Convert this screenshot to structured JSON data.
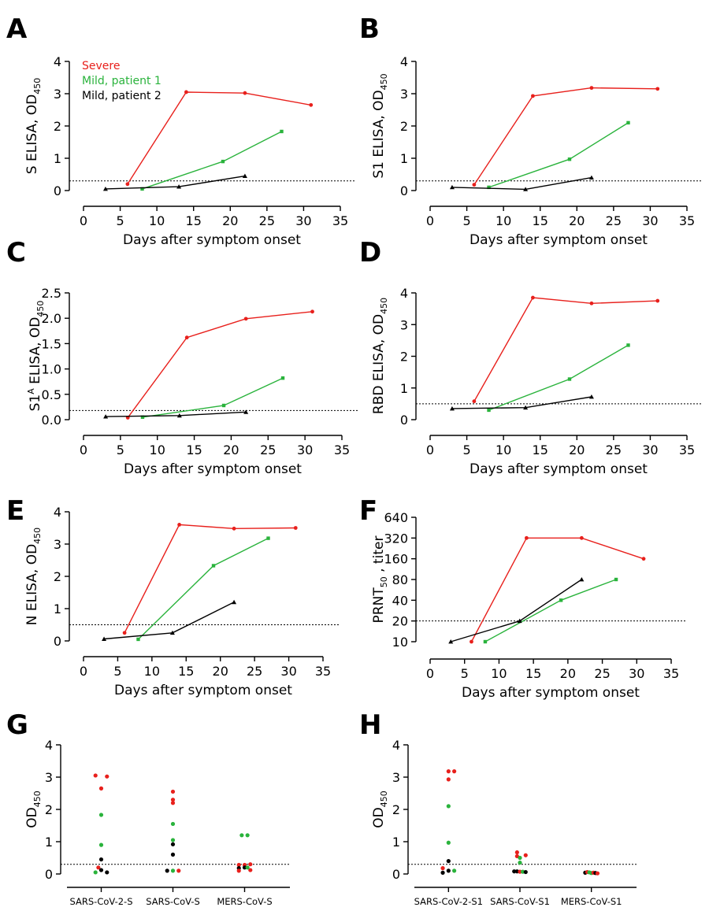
{
  "colors": {
    "severe": "#e8201c",
    "mild1": "#2ab33c",
    "mild2": "#000000",
    "axis": "#000000",
    "cutoff": "#000000"
  },
  "legend": [
    {
      "name": "Severe",
      "color": "#e8201c"
    },
    {
      "name": "Mild, patient 1",
      "color": "#2ab33c"
    },
    {
      "name": "Mild, patient 2",
      "color": "#000000"
    }
  ],
  "chart_data": [
    {
      "panel": "A",
      "type": "line",
      "xlabel": "Days after symptom onset",
      "ylabel": "S ELISA, OD",
      "ylabel_sub": "450",
      "xlim": [
        0,
        35
      ],
      "xticks": [
        "0",
        "5",
        "10",
        "15",
        "20",
        "25",
        "30",
        "35"
      ],
      "ylim": [
        0,
        4
      ],
      "yticks": [
        "0",
        "1",
        "2",
        "3",
        "4"
      ],
      "cutoff": 0.3,
      "series": [
        {
          "name": "Severe",
          "x": [
            6,
            14,
            22,
            31
          ],
          "y": [
            0.2,
            3.05,
            3.02,
            2.65
          ]
        },
        {
          "name": "Mild, patient 1",
          "x": [
            8,
            19,
            27
          ],
          "y": [
            0.05,
            0.9,
            1.83
          ]
        },
        {
          "name": "Mild, patient 2",
          "x": [
            3,
            13,
            22
          ],
          "y": [
            0.05,
            0.12,
            0.45
          ]
        }
      ]
    },
    {
      "panel": "B",
      "type": "line",
      "xlabel": "Days after symptom onset",
      "ylabel": "S1 ELISA, OD",
      "ylabel_sub": "450",
      "xlim": [
        0,
        35
      ],
      "xticks": [
        "0",
        "5",
        "10",
        "15",
        "20",
        "25",
        "30",
        "35"
      ],
      "ylim": [
        0,
        4
      ],
      "yticks": [
        "0",
        "1",
        "2",
        "3",
        "4"
      ],
      "cutoff": 0.3,
      "series": [
        {
          "name": "Severe",
          "x": [
            6,
            14,
            22,
            31
          ],
          "y": [
            0.18,
            2.93,
            3.18,
            3.15
          ]
        },
        {
          "name": "Mild, patient 1",
          "x": [
            8,
            19,
            27
          ],
          "y": [
            0.1,
            0.97,
            2.1
          ]
        },
        {
          "name": "Mild, patient 2",
          "x": [
            3,
            13,
            22
          ],
          "y": [
            0.1,
            0.04,
            0.4
          ]
        }
      ]
    },
    {
      "panel": "C",
      "type": "line",
      "xlabel": "Days after symptom onset",
      "ylabel": "S1",
      "ylabel_sup": "A",
      "ylabel_rest": " ELISA, OD",
      "ylabel_sub": "450",
      "xlim": [
        0,
        35
      ],
      "xticks": [
        "0",
        "5",
        "10",
        "15",
        "20",
        "25",
        "30",
        "35"
      ],
      "ylim": [
        0,
        2.5
      ],
      "yticks": [
        "0.0",
        "0.5",
        "1.0",
        "1.5",
        "2.0",
        "2.5"
      ],
      "cutoff": 0.18,
      "series": [
        {
          "name": "Severe",
          "x": [
            6,
            14,
            22,
            31
          ],
          "y": [
            0.04,
            1.62,
            1.99,
            2.13
          ]
        },
        {
          "name": "Mild, patient 1",
          "x": [
            8,
            19,
            27
          ],
          "y": [
            0.05,
            0.28,
            0.82
          ]
        },
        {
          "name": "Mild, patient 2",
          "x": [
            3,
            13,
            22
          ],
          "y": [
            0.06,
            0.08,
            0.15
          ]
        }
      ]
    },
    {
      "panel": "D",
      "type": "line",
      "xlabel": "Days after symptom onset",
      "ylabel": "RBD ELISA, OD",
      "ylabel_sub": "450",
      "xlim": [
        0,
        35
      ],
      "xticks": [
        "0",
        "5",
        "10",
        "15",
        "20",
        "25",
        "30",
        "35"
      ],
      "ylim": [
        0,
        4
      ],
      "yticks": [
        "0",
        "1",
        "2",
        "3",
        "4"
      ],
      "cutoff": 0.5,
      "series": [
        {
          "name": "Severe",
          "x": [
            6,
            14,
            22,
            31
          ],
          "y": [
            0.58,
            3.85,
            3.67,
            3.75
          ]
        },
        {
          "name": "Mild, patient 1",
          "x": [
            8,
            19,
            27
          ],
          "y": [
            0.3,
            1.28,
            2.35
          ]
        },
        {
          "name": "Mild, patient 2",
          "x": [
            3,
            13,
            22
          ],
          "y": [
            0.35,
            0.38,
            0.72
          ]
        }
      ]
    },
    {
      "panel": "E",
      "type": "line",
      "xlabel": "Days after symptom onset",
      "ylabel": "N ELISA, OD",
      "ylabel_sub": "450",
      "xlim": [
        0,
        35
      ],
      "xticks": [
        "0",
        "5",
        "10",
        "15",
        "20",
        "25",
        "30",
        "35"
      ],
      "ylim": [
        0,
        4
      ],
      "yticks": [
        "0",
        "1",
        "2",
        "3",
        "4"
      ],
      "cutoff": 0.5,
      "series": [
        {
          "name": "Severe",
          "x": [
            6,
            14,
            22,
            31
          ],
          "y": [
            0.25,
            3.6,
            3.48,
            3.5
          ]
        },
        {
          "name": "Mild, patient 1",
          "x": [
            8,
            19,
            27
          ],
          "y": [
            0.05,
            2.33,
            3.18
          ]
        },
        {
          "name": "Mild, patient 2",
          "x": [
            3,
            13,
            22
          ],
          "y": [
            0.06,
            0.25,
            1.2
          ]
        }
      ]
    },
    {
      "panel": "F",
      "type": "line",
      "xlabel": "Days after symptom onset",
      "ylabel": "PRNT",
      "ylabel_sub": "50",
      "ylabel_rest": " , titer",
      "yscale": "log2",
      "xlim": [
        0,
        35
      ],
      "xticks": [
        "0",
        "5",
        "10",
        "15",
        "20",
        "25",
        "30",
        "35"
      ],
      "ylim": [
        10,
        640
      ],
      "yticks": [
        "10",
        "20",
        "40",
        "80",
        "160",
        "320",
        "640"
      ],
      "cutoff": 20,
      "series": [
        {
          "name": "Severe",
          "x": [
            6,
            14,
            22,
            31
          ],
          "y": [
            10,
            320,
            320,
            160
          ]
        },
        {
          "name": "Mild, patient 1",
          "x": [
            8,
            19,
            27
          ],
          "y": [
            10,
            40,
            80
          ]
        },
        {
          "name": "Mild, patient 2",
          "x": [
            3,
            13,
            22
          ],
          "y": [
            10,
            20,
            80
          ]
        }
      ]
    },
    {
      "panel": "G",
      "type": "scatter",
      "xlabel": "",
      "ylabel": "OD",
      "ylabel_sub": "450",
      "ylim": [
        0,
        4
      ],
      "yticks": [
        "0",
        "1",
        "2",
        "3",
        "4"
      ],
      "cutoff": 0.3,
      "categories": [
        "SARS-CoV-2-S",
        "SARS-CoV-S",
        "MERS-CoV-S"
      ],
      "points": [
        {
          "category": 0,
          "offset": -0.28,
          "y": 3.05,
          "series": "Severe"
        },
        {
          "category": 0,
          "offset": 0.28,
          "y": 3.02,
          "series": "Severe"
        },
        {
          "category": 0,
          "offset": 0.0,
          "y": 2.65,
          "series": "Severe"
        },
        {
          "category": 0,
          "offset": 0.0,
          "y": 1.83,
          "series": "Mild, patient 1"
        },
        {
          "category": 0,
          "offset": 0.0,
          "y": 0.9,
          "series": "Mild, patient 1"
        },
        {
          "category": 0,
          "offset": 0.0,
          "y": 0.45,
          "series": "Mild, patient 2"
        },
        {
          "category": 0,
          "offset": -0.14,
          "y": 0.2,
          "series": "Severe"
        },
        {
          "category": 0,
          "offset": -0.28,
          "y": 0.05,
          "series": "Mild, patient 1"
        },
        {
          "category": 0,
          "offset": 0.0,
          "y": 0.12,
          "series": "Mild, patient 2"
        },
        {
          "category": 0,
          "offset": 0.28,
          "y": 0.05,
          "series": "Mild, patient 2"
        },
        {
          "category": 1,
          "offset": 0.0,
          "y": 2.55,
          "series": "Severe"
        },
        {
          "category": 1,
          "offset": 0.0,
          "y": 2.3,
          "series": "Severe"
        },
        {
          "category": 1,
          "offset": 0.0,
          "y": 2.2,
          "series": "Severe"
        },
        {
          "category": 1,
          "offset": 0.0,
          "y": 1.55,
          "series": "Mild, patient 1"
        },
        {
          "category": 1,
          "offset": 0.0,
          "y": 1.05,
          "series": "Mild, patient 1"
        },
        {
          "category": 1,
          "offset": 0.0,
          "y": 0.92,
          "series": "Mild, patient 2"
        },
        {
          "category": 1,
          "offset": 0.0,
          "y": 0.6,
          "series": "Mild, patient 2"
        },
        {
          "category": 1,
          "offset": -0.28,
          "y": 0.1,
          "series": "Mild, patient 2"
        },
        {
          "category": 1,
          "offset": 0.0,
          "y": 0.1,
          "series": "Mild, patient 1"
        },
        {
          "category": 1,
          "offset": 0.28,
          "y": 0.1,
          "series": "Severe"
        },
        {
          "category": 2,
          "offset": -0.14,
          "y": 1.2,
          "series": "Mild, patient 1"
        },
        {
          "category": 2,
          "offset": 0.14,
          "y": 1.2,
          "series": "Mild, patient 1"
        },
        {
          "category": 2,
          "offset": -0.28,
          "y": 0.28,
          "series": "Severe"
        },
        {
          "category": 2,
          "offset": 0.0,
          "y": 0.28,
          "series": "Severe"
        },
        {
          "category": 2,
          "offset": 0.28,
          "y": 0.3,
          "series": "Severe"
        },
        {
          "category": 2,
          "offset": -0.28,
          "y": 0.18,
          "series": "Mild, patient 2"
        },
        {
          "category": 2,
          "offset": 0.0,
          "y": 0.2,
          "series": "Mild, patient 2"
        },
        {
          "category": 2,
          "offset": 0.28,
          "y": 0.12,
          "series": "Severe"
        },
        {
          "category": 2,
          "offset": -0.28,
          "y": 0.1,
          "series": "Severe"
        },
        {
          "category": 2,
          "offset": 0.14,
          "y": 0.2,
          "series": "Mild, patient 1"
        }
      ]
    },
    {
      "panel": "H",
      "type": "scatter",
      "xlabel": "",
      "ylabel": "OD",
      "ylabel_sub": "450",
      "ylim": [
        0,
        4
      ],
      "yticks": [
        "0",
        "1",
        "2",
        "3",
        "4"
      ],
      "cutoff": 0.3,
      "categories": [
        "SARS-CoV-2-S1",
        "SARS-CoV-S1",
        "MERS-CoV-S1"
      ],
      "points": [
        {
          "category": 0,
          "offset": 0.0,
          "y": 3.18,
          "series": "Severe"
        },
        {
          "category": 0,
          "offset": 0.28,
          "y": 3.18,
          "series": "Severe"
        },
        {
          "category": 0,
          "offset": 0.0,
          "y": 2.93,
          "series": "Severe"
        },
        {
          "category": 0,
          "offset": 0.0,
          "y": 2.1,
          "series": "Mild, patient 1"
        },
        {
          "category": 0,
          "offset": 0.0,
          "y": 0.97,
          "series": "Mild, patient 1"
        },
        {
          "category": 0,
          "offset": 0.0,
          "y": 0.4,
          "series": "Mild, patient 2"
        },
        {
          "category": 0,
          "offset": -0.28,
          "y": 0.18,
          "series": "Severe"
        },
        {
          "category": 0,
          "offset": -0.28,
          "y": 0.04,
          "series": "Mild, patient 2"
        },
        {
          "category": 0,
          "offset": 0.0,
          "y": 0.1,
          "series": "Mild, patient 2"
        },
        {
          "category": 0,
          "offset": 0.28,
          "y": 0.1,
          "series": "Mild, patient 1"
        },
        {
          "category": 1,
          "offset": -0.14,
          "y": 0.67,
          "series": "Severe"
        },
        {
          "category": 1,
          "offset": -0.14,
          "y": 0.55,
          "series": "Severe"
        },
        {
          "category": 1,
          "offset": 0.0,
          "y": 0.5,
          "series": "Mild, patient 1"
        },
        {
          "category": 1,
          "offset": 0.28,
          "y": 0.58,
          "series": "Severe"
        },
        {
          "category": 1,
          "offset": 0.0,
          "y": 0.35,
          "series": "Mild, patient 1"
        },
        {
          "category": 1,
          "offset": -0.28,
          "y": 0.08,
          "series": "Mild, patient 2"
        },
        {
          "category": 1,
          "offset": -0.14,
          "y": 0.08,
          "series": "Mild, patient 2"
        },
        {
          "category": 1,
          "offset": 0.0,
          "y": 0.07,
          "series": "Severe"
        },
        {
          "category": 1,
          "offset": 0.14,
          "y": 0.07,
          "series": "Mild, patient 1"
        },
        {
          "category": 1,
          "offset": 0.28,
          "y": 0.06,
          "series": "Mild, patient 2"
        },
        {
          "category": 2,
          "offset": -0.3,
          "y": 0.04,
          "series": "Mild, patient 2"
        },
        {
          "category": 2,
          "offset": -0.2,
          "y": 0.06,
          "series": "Severe"
        },
        {
          "category": 2,
          "offset": -0.1,
          "y": 0.05,
          "series": "Mild, patient 1"
        },
        {
          "category": 2,
          "offset": 0.0,
          "y": 0.03,
          "series": "Mild, patient 1"
        },
        {
          "category": 2,
          "offset": 0.1,
          "y": 0.04,
          "series": "Severe"
        },
        {
          "category": 2,
          "offset": 0.2,
          "y": 0.03,
          "series": "Mild, patient 2"
        },
        {
          "category": 2,
          "offset": 0.3,
          "y": 0.02,
          "series": "Severe"
        }
      ]
    }
  ]
}
